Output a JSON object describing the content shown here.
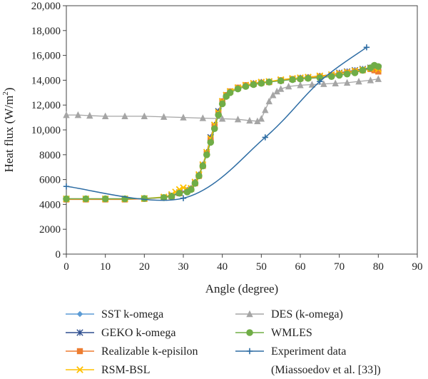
{
  "chart_data": {
    "type": "line",
    "title": "",
    "xlabel": "Angle (degree)",
    "ylabel_main": "Heat flux (W/m",
    "ylabel_sup": "2",
    "ylabel_close": ")",
    "xlim": [
      0,
      90
    ],
    "ylim": [
      0,
      20000
    ],
    "x_ticks": [
      0,
      10,
      20,
      30,
      40,
      50,
      60,
      70,
      80,
      90
    ],
    "y_ticks": [
      0,
      2000,
      4000,
      6000,
      8000,
      10000,
      12000,
      14000,
      16000,
      18000,
      20000
    ],
    "x_tick_labels": [
      "0",
      "10",
      "20",
      "30",
      "40",
      "50",
      "60",
      "70",
      "80",
      "90"
    ],
    "y_tick_labels": [
      "0",
      "2000",
      "4000",
      "6000",
      "8000",
      "10,000",
      "12,000",
      "14,000",
      "16,000",
      "18,000",
      "20,000"
    ],
    "grid": false,
    "legend_placement": "bottom",
    "series": [
      {
        "name": "SST k-omega",
        "color": "#5b9bd5",
        "marker": "diamond",
        "x": [
          0,
          5,
          10,
          15,
          20,
          25,
          27,
          29,
          31,
          32,
          33,
          34,
          35,
          36,
          37,
          38,
          39,
          40,
          41,
          42,
          44,
          46,
          48,
          50,
          52,
          55,
          58,
          60,
          62,
          65,
          68,
          70,
          72,
          74,
          76,
          78,
          79,
          80
        ],
        "y": [
          4450,
          4450,
          4450,
          4450,
          4480,
          4550,
          4700,
          4950,
          5100,
          5300,
          5800,
          6400,
          7200,
          8200,
          9300,
          10400,
          11400,
          12300,
          12800,
          13100,
          13400,
          13600,
          13700,
          13800,
          13850,
          14000,
          14100,
          14150,
          14200,
          14300,
          14400,
          14500,
          14600,
          14700,
          14800,
          14900,
          15000,
          14900
        ]
      },
      {
        "name": "GEKO k-omega",
        "color": "#2f4f8f",
        "marker": "x-star",
        "x": [
          0,
          5,
          10,
          15,
          20,
          25,
          27,
          29,
          31,
          32,
          33,
          34,
          35,
          36,
          37,
          38,
          39,
          40,
          41,
          42,
          44,
          46,
          48,
          50,
          52,
          55,
          58,
          60,
          62,
          65,
          68,
          70,
          72,
          74,
          76,
          78,
          79,
          80
        ],
        "y": [
          4450,
          4450,
          4450,
          4450,
          4480,
          4550,
          4700,
          4950,
          5150,
          5300,
          5800,
          6400,
          7200,
          8200,
          9400,
          10400,
          11500,
          12300,
          12800,
          13100,
          13400,
          13600,
          13750,
          13850,
          13900,
          14000,
          14100,
          14200,
          14250,
          14350,
          14450,
          14600,
          14700,
          14800,
          14900,
          15000,
          15100,
          15000
        ]
      },
      {
        "name": "Realizable k-episilon",
        "color": "#ed7d31",
        "marker": "square",
        "x": [
          0,
          5,
          10,
          15,
          20,
          25,
          27,
          29,
          31,
          32,
          33,
          34,
          35,
          36,
          37,
          38,
          39,
          40,
          41,
          42,
          44,
          46,
          48,
          50,
          52,
          55,
          58,
          60,
          62,
          65,
          68,
          70,
          72,
          74,
          76,
          78,
          79,
          80
        ],
        "y": [
          4400,
          4400,
          4400,
          4400,
          4450,
          4550,
          4650,
          4900,
          5100,
          5250,
          5700,
          6300,
          7100,
          8100,
          9200,
          10300,
          11300,
          12300,
          12800,
          13100,
          13400,
          13600,
          13700,
          13800,
          13850,
          14000,
          14100,
          14150,
          14200,
          14300,
          14400,
          14500,
          14600,
          14700,
          14800,
          14900,
          14800,
          14700
        ]
      },
      {
        "name": "RSM-BSL",
        "color": "#ffc000",
        "marker": "x",
        "x": [
          0,
          5,
          10,
          15,
          20,
          25,
          27,
          28,
          29,
          30,
          31,
          32,
          33,
          34,
          35,
          36,
          37,
          38,
          39,
          40,
          41,
          42,
          44,
          46,
          48,
          50,
          52,
          55,
          58,
          60,
          62,
          65,
          68,
          70,
          72,
          74,
          76,
          78,
          79,
          80
        ],
        "y": [
          4450,
          4450,
          4450,
          4450,
          4480,
          4600,
          4800,
          5000,
          5200,
          5350,
          5200,
          5300,
          5800,
          6400,
          7200,
          8200,
          9300,
          10400,
          11400,
          12300,
          12800,
          13100,
          13400,
          13600,
          13750,
          13850,
          13900,
          14050,
          14150,
          14200,
          14250,
          14350,
          14450,
          14550,
          14650,
          14750,
          14850,
          14950,
          15000,
          14900
        ]
      },
      {
        "name": "DES (k-omega)",
        "color": "#a5a5a5",
        "marker": "triangle",
        "x": [
          0,
          3,
          6,
          10,
          15,
          20,
          25,
          30,
          35,
          40,
          44,
          47,
          49,
          50,
          51,
          52,
          53,
          54,
          55,
          57,
          60,
          63,
          66,
          69,
          72,
          75,
          78,
          80
        ],
        "y": [
          11200,
          11200,
          11150,
          11100,
          11100,
          11100,
          11050,
          11000,
          10950,
          10900,
          10850,
          10750,
          10700,
          10900,
          11600,
          12300,
          12800,
          13100,
          13300,
          13500,
          13600,
          13650,
          13700,
          13750,
          13800,
          13900,
          14000,
          14100
        ]
      },
      {
        "name": "WMLES",
        "color": "#70ad47",
        "marker": "circle",
        "x": [
          0,
          5,
          10,
          15,
          20,
          25,
          27,
          29,
          31,
          32,
          33,
          34,
          35,
          36,
          37,
          38,
          39,
          40,
          41,
          42,
          44,
          46,
          48,
          50,
          52,
          55,
          58,
          60,
          62,
          65,
          68,
          70,
          72,
          74,
          76,
          78,
          79,
          80
        ],
        "y": [
          4450,
          4450,
          4450,
          4450,
          4480,
          4550,
          4650,
          4900,
          5000,
          5200,
          5700,
          6300,
          7100,
          8000,
          9000,
          10100,
          11200,
          12100,
          12700,
          13000,
          13300,
          13500,
          13650,
          13750,
          13850,
          13950,
          14050,
          14100,
          14150,
          14200,
          14300,
          14400,
          14500,
          14600,
          14800,
          15000,
          15200,
          15100
        ]
      },
      {
        "name": "Experiment data (Miassoedov et al. [33])",
        "name_line1": "Experiment data",
        "name_line2": "(Miassoedov et al. [33])",
        "color": "#2e6da4",
        "marker": "plus",
        "smooth": true,
        "x": [
          0,
          30,
          51,
          65,
          77
        ],
        "y": [
          5450,
          4500,
          9400,
          13900,
          16650
        ]
      }
    ]
  }
}
